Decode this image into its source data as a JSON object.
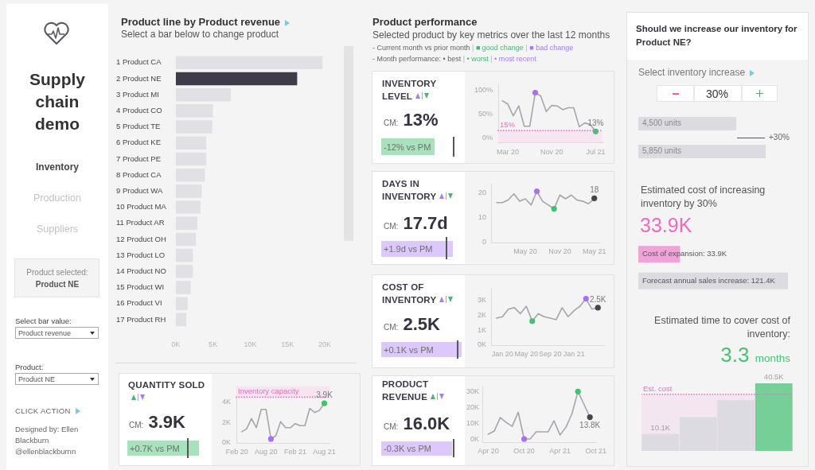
{
  "chart_data": [
    {
      "type": "other",
      "title": "Supply chain demo",
      "annotations": [
        "Inventory",
        "Production",
        "Suppliers",
        "Product selected:",
        "Product NE",
        "Select bar value:",
        "Product revenue",
        "Product:",
        "Product NE",
        "CLICK ACTION",
        "Designed by: Ellen Blackburn @ellenblackburnn"
      ]
    },
    {
      "type": "bar",
      "orientation": "horizontal",
      "title": "Product line by Product revenue",
      "subtitle": "Select a bar below to change product",
      "categories": [
        "1 Product CA",
        "2 Product NE",
        "3 Product MI",
        "4 Product CO",
        "5 Product TE",
        "6 Product KE",
        "7 Product PE",
        "8 Product CA",
        "9 Product WA",
        "10 Product MA",
        "11 Product AR",
        "12 Product OH",
        "13 Product LO",
        "14 Product NO",
        "15 Product WI",
        "16 Product VI",
        "17 Product RH"
      ],
      "values": [
        19700,
        16300,
        7400,
        5000,
        4900,
        4100,
        4100,
        3900,
        3500,
        3300,
        2900,
        2700,
        2300,
        2300,
        2000,
        1600,
        1400
      ],
      "colors": [
        "#e1e0e5",
        "#3d3c48",
        "#e1e0e5",
        "#e1e0e5",
        "#e1e0e5",
        "#e1e0e5",
        "#e1e0e5",
        "#e1e0e5",
        "#e1e0e5",
        "#e1e0e5",
        "#e1e0e5",
        "#e1e0e5",
        "#e1e0e5",
        "#e1e0e5",
        "#e1e0e5",
        "#e1e0e5",
        "#e1e0e5"
      ],
      "xlim": [
        0,
        20000
      ],
      "xticks": [
        {
          "value": 0,
          "label": "0K"
        },
        {
          "value": 5000,
          "label": "5K"
        },
        {
          "value": 10000,
          "label": "10K"
        },
        {
          "value": 15000,
          "label": "15K"
        },
        {
          "value": 20000,
          "label": "20K"
        }
      ]
    },
    {
      "type": "line",
      "title": "QUANTITY SOLD",
      "annotations": [
        "CM: 3.9K",
        "+0.7K vs PM"
      ],
      "x": [
        "2020-03",
        "2020-04",
        "2020-05",
        "2020-06",
        "2020-07",
        "2020-08",
        "2020-09",
        "2020-10",
        "2020-11",
        "2020-12",
        "2021-01",
        "2021-02",
        "2021-03",
        "2021-04",
        "2021-05",
        "2021-06",
        "2021-07",
        "2021-08"
      ],
      "series": [
        {
          "type": "line",
          "color": "#a6a5ac",
          "marker": "none",
          "values": [
            1.1,
            1.4,
            2.4,
            1.5,
            3.3,
            3.3,
            0.4,
            0.7,
            2.1,
            1.5,
            1.5,
            1.9,
            1.7,
            1.7,
            3.4,
            3.0,
            3.2,
            3.9
          ],
          "value_labels": [
            null,
            null,
            null,
            null,
            null,
            null,
            null,
            null,
            null,
            null,
            null,
            null,
            null,
            null,
            null,
            null,
            null,
            "3.9K"
          ]
        },
        {
          "type": "scatter",
          "marker": "circle",
          "x": [
            "2020-09",
            "2021-08"
          ],
          "values": [
            0.4,
            3.9
          ],
          "colors": [
            "#a970f5",
            "#3ec46d"
          ]
        }
      ],
      "xlim": [
        "2020-01-28",
        "2021-09-04"
      ],
      "xticks": [
        {
          "value": "2020-02",
          "label": "Feb 20"
        },
        {
          "value": "2020-08",
          "label": "Aug 20"
        },
        {
          "value": "2021-02",
          "label": "Feb 21"
        },
        {
          "value": "2021-08",
          "label": "Aug 21"
        }
      ],
      "ylim": [
        0,
        5.6
      ],
      "yticks": [
        {
          "value": 0,
          "label": "0K"
        },
        {
          "value": 2,
          "label": "2K"
        },
        {
          "value": 4,
          "label": "4K"
        }
      ],
      "ref_lines": [
        {
          "axis": "y",
          "value": 4.5,
          "label": "Inventory capacity",
          "color": "#e26fc0",
          "line_style": "dotted"
        }
      ],
      "bands": [
        {
          "axis": "y",
          "from": 4.5,
          "to": 5.6,
          "color": "#f6e4f1"
        }
      ]
    },
    {
      "type": "other",
      "title": "Product performance",
      "subtitle": "Selected product by key metrics over the last 12 months",
      "annotations": [
        "- Current month vs prior month | ■ good change | ■ bad change",
        "- Month performance: • best | • worst | • most recent"
      ]
    },
    {
      "type": "line",
      "title": "INVENTORY LEVEL",
      "annotations": [
        "CM: 13%",
        "-12% vs PM"
      ],
      "x": [
        "2020-02",
        "2020-03",
        "2020-04",
        "2020-05",
        "2020-06",
        "2020-07",
        "2020-08",
        "2020-09",
        "2020-10",
        "2020-11",
        "2020-12",
        "2021-01",
        "2021-02",
        "2021-03",
        "2021-04",
        "2021-05",
        "2021-06",
        "2021-07"
      ],
      "series": [
        {
          "type": "line",
          "color": "#a6a5ac",
          "marker": "none",
          "values": [
            78,
            71,
            46,
            67,
            24,
            24,
            95,
            88,
            55,
            68,
            67,
            59,
            63,
            63,
            23,
            31,
            28,
            13
          ],
          "value_labels": [
            null,
            null,
            null,
            null,
            null,
            null,
            null,
            null,
            null,
            null,
            null,
            null,
            null,
            null,
            null,
            null,
            null,
            "13%"
          ]
        },
        {
          "type": "scatter",
          "marker": "circle",
          "x": [
            "2020-08",
            "2021-07"
          ],
          "values": [
            95,
            13
          ],
          "colors": [
            "#a970f5",
            "#3ec46d"
          ]
        }
      ],
      "xlim": [
        "2020-01-09",
        "2021-08-09"
      ],
      "xticks": [
        {
          "value": "2020-03",
          "label": "Mar 20"
        },
        {
          "value": "2020-11",
          "label": "Nov 20"
        },
        {
          "value": "2021-07",
          "label": "Jul 21"
        }
      ],
      "ylim": [
        -10,
        112
      ],
      "yticks": [
        {
          "value": 0,
          "label": "0%"
        },
        {
          "value": 50,
          "label": "50%"
        },
        {
          "value": 100,
          "label": "100%"
        }
      ],
      "ref_lines": [
        {
          "axis": "y",
          "value": 15,
          "label": "15%",
          "color": "#e26fc0",
          "line_style": "dotted"
        }
      ],
      "bands": [
        {
          "axis": "y",
          "from": -10,
          "to": 15,
          "color": "#f7e6f2"
        }
      ]
    },
    {
      "type": "line",
      "title": "DAYS IN INVENTORY",
      "annotations": [
        "CM: 17.7d",
        "+1.9d vs PM"
      ],
      "x": [
        "2019-12",
        "2020-01",
        "2020-02",
        "2020-03",
        "2020-04",
        "2020-05",
        "2020-06",
        "2020-07",
        "2020-08",
        "2020-09",
        "2020-10",
        "2020-11",
        "2020-12",
        "2021-01",
        "2021-02",
        "2021-03",
        "2021-04",
        "2021-05"
      ],
      "series": [
        {
          "type": "line",
          "color": "#a6a5ac",
          "marker": "none",
          "values": [
            16,
            16,
            17,
            19.5,
            16.5,
            17.5,
            15,
            20.5,
            16.5,
            15,
            13.5,
            19,
            17.5,
            19,
            17,
            16.5,
            15.5,
            17.7
          ],
          "value_labels": [
            null,
            null,
            null,
            null,
            null,
            null,
            null,
            null,
            null,
            null,
            null,
            null,
            null,
            null,
            null,
            null,
            null,
            "18"
          ]
        },
        {
          "type": "scatter",
          "marker": "circle",
          "x": [
            "2020-07",
            "2020-10",
            "2021-05"
          ],
          "values": [
            20.5,
            13.5,
            17.7
          ],
          "colors": [
            "#a970f5",
            "#3ec46d",
            "#45444f"
          ]
        }
      ],
      "xlim": [
        "2019-11-02",
        "2021-06-01"
      ],
      "xticks": [
        {
          "value": "2020-05",
          "label": "May 20"
        },
        {
          "value": "2020-11",
          "label": "Nov 20"
        },
        {
          "value": "2021-05",
          "label": "May 21"
        }
      ],
      "ylim": [
        0,
        23.4
      ],
      "yticks": [
        0,
        10,
        20
      ]
    },
    {
      "type": "line",
      "title": "COST OF INVENTORY",
      "annotations": [
        "CM: 2.5K",
        "+0.1K vs PM"
      ],
      "x": [
        "2019-12",
        "2020-01",
        "2020-02",
        "2020-03",
        "2020-04",
        "2020-05",
        "2020-06",
        "2020-07",
        "2020-08",
        "2020-09",
        "2020-10",
        "2020-11",
        "2020-12",
        "2021-01",
        "2021-02",
        "2021-03",
        "2021-04",
        "2021-05"
      ],
      "series": [
        {
          "type": "line",
          "color": "#a6a5ac",
          "marker": "none",
          "values": [
            1.8,
            1.9,
            2.4,
            2.5,
            2.1,
            2.6,
            1.6,
            2.1,
            1.9,
            1.8,
            1.7,
            2.5,
            1.9,
            2.3,
            2.6,
            3.1,
            2.4,
            2.5
          ],
          "value_labels": [
            null,
            null,
            null,
            null,
            null,
            null,
            null,
            null,
            null,
            null,
            null,
            null,
            null,
            null,
            null,
            null,
            null,
            "2.5K"
          ]
        },
        {
          "type": "scatter",
          "marker": "circle",
          "x": [
            "2020-06",
            "2021-03",
            "2021-05"
          ],
          "values": [
            1.6,
            3.1,
            2.5
          ],
          "colors": [
            "#3ec46d",
            "#a970f5",
            "#45444f"
          ]
        }
      ],
      "xlim": [
        "2019-11-04",
        "2021-06-02"
      ],
      "xticks": [
        {
          "value": "2020-01",
          "label": "Jan 20"
        },
        {
          "value": "2020-05",
          "label": "May 20"
        },
        {
          "value": "2020-09",
          "label": "Sep 20"
        },
        {
          "value": "2021-01",
          "label": "Jan 21"
        }
      ],
      "ylim": [
        0,
        3.8
      ],
      "yticks": [
        {
          "value": 0,
          "label": "0K"
        },
        {
          "value": 1,
          "label": "1K"
        },
        {
          "value": 2,
          "label": "2K"
        },
        {
          "value": 3,
          "label": "3K"
        }
      ]
    },
    {
      "type": "line",
      "title": "PRODUCT REVENUE",
      "annotations": [
        "CM: 16.0K",
        "-0.3K vs PM"
      ],
      "x": [
        "2020-04",
        "2020-05",
        "2020-06",
        "2020-07",
        "2020-08",
        "2020-09",
        "2020-10",
        "2020-11",
        "2020-12",
        "2021-01",
        "2021-02",
        "2021-03",
        "2021-04",
        "2021-05",
        "2021-06",
        "2021-07",
        "2021-08",
        "2021-09"
      ],
      "series": [
        {
          "type": "line",
          "color": "#a6a5ac",
          "marker": "none",
          "values": [
            3,
            5,
            13.5,
            10.5,
            8,
            17,
            0,
            0,
            4.5,
            4.5,
            4.5,
            11.5,
            2.5,
            7.5,
            16,
            30,
            22,
            13.8
          ],
          "value_labels": [
            null,
            null,
            null,
            null,
            null,
            null,
            null,
            null,
            null,
            null,
            null,
            null,
            null,
            null,
            null,
            null,
            null,
            "13.8K"
          ]
        },
        {
          "type": "scatter",
          "marker": "circle",
          "x": [
            "2020-10",
            "2021-07",
            "2021-09"
          ],
          "values": [
            0,
            30,
            13.8
          ],
          "colors": [
            "#a970f5",
            "#3ec46d",
            "#45444f"
          ]
        }
      ],
      "xlim": [
        "2020-03-01",
        "2021-10-04"
      ],
      "xticks": [
        {
          "value": "2020-04",
          "label": "Apr 20"
        },
        {
          "value": "2020-10",
          "label": "Oct 20"
        },
        {
          "value": "2021-04",
          "label": "Apr 21"
        },
        {
          "value": "2021-10",
          "label": "Oct 21"
        }
      ],
      "ylim": [
        -2,
        33
      ],
      "yticks": [
        {
          "value": 0,
          "label": "0K"
        },
        {
          "value": 10,
          "label": "10K"
        },
        {
          "value": 20,
          "label": "20K"
        },
        {
          "value": 30,
          "label": "30K"
        }
      ]
    },
    {
      "type": "bar",
      "orientation": "horizontal",
      "title": "Should we increase our inventory for Product NE?",
      "subtitle": "Select inventory increase",
      "annotations": [
        "30%",
        "+30%"
      ],
      "categories": [
        null,
        null
      ],
      "values": [
        4500,
        5850
      ],
      "colors": [
        "#dcdbe1",
        "#dcdbe1"
      ],
      "value_labels": [
        "4,500 units",
        "5,850 units"
      ],
      "tick_labels": false
    },
    {
      "type": "bar",
      "orientation": "horizontal",
      "title": "Estimated cost of increasing inventory by 30%",
      "subtitle": "33.9K",
      "categories": [
        null,
        null
      ],
      "values": [
        33.9,
        121.4
      ],
      "colors": [
        "#efa3d9",
        "#dcdbe1"
      ],
      "value_labels": [
        "Cost of expansion: 33.9K",
        "Forecast annual sales increase: 121.4K"
      ],
      "tick_labels": false
    },
    {
      "type": "bar",
      "title": "Estimated time to cover cost of inventory:",
      "subtitle": "3.3 months",
      "categories": [
        null,
        null,
        null,
        null
      ],
      "values": [
        10.1,
        20.3,
        30.4,
        40.5
      ],
      "colors": [
        "#dcdbe1",
        "#dcdbe1",
        "#dcdbe1",
        "#77cf98"
      ],
      "value_labels": [
        "10.1K",
        null,
        null,
        "40.5K"
      ],
      "ref_lines": [
        {
          "axis": "y",
          "value": 33.9,
          "label": "Est. cost",
          "color": "#e86fc3",
          "line_style": "dotted"
        }
      ],
      "bands": [
        {
          "axis": "y",
          "from": 0,
          "to": 33.9,
          "color": "#f3e6f1"
        }
      ],
      "tick_labels": false
    }
  ]
}
